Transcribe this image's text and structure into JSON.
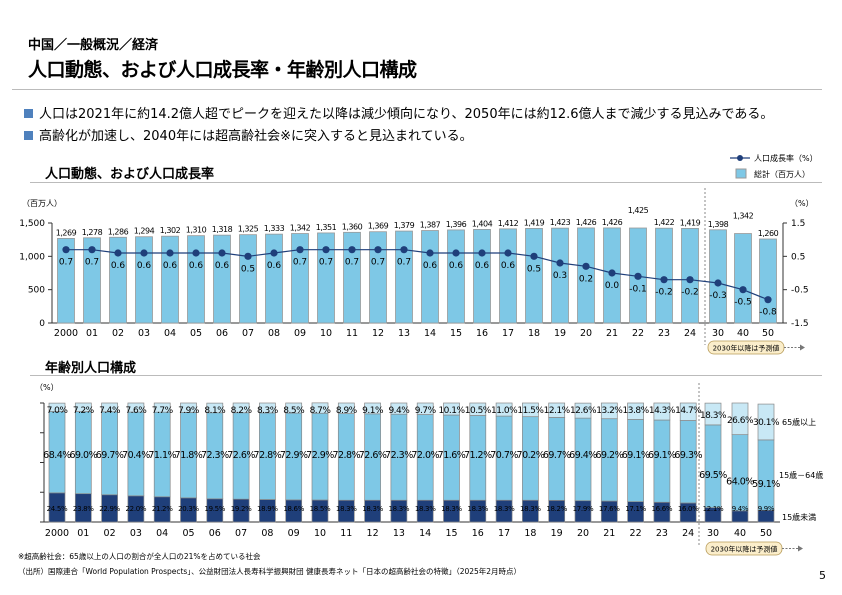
{
  "header": {
    "breadcrumb": "中国／一般概況／経済",
    "title": "人口動態、および人口成長率・年齢別人口構成"
  },
  "bullets": [
    "人口は2021年に約14.2億人超でピークを迎えた以降は減少傾向になり、2050年には約12.6億人まで減少する見込みである。",
    "高齢化が加速し、2040年には超高齢社会※に突入すると見込まれている。"
  ],
  "footnotes": [
    "※超高齢社会：65歳以上の人口の割合が全人口の21%を占めている社会",
    "（出所）国際連合「World Population Prospects」、公益財団法人長寿科学振興財団 健康長寿ネット「日本の超高齢社会の特徴」（2025年2月時点）"
  ],
  "page_number": "5",
  "colors": {
    "bar": "#7ec8e6",
    "line": "#1f3f7a",
    "elderly": "#c8e8f5",
    "working": "#7ec8e6",
    "young": "#1f3f7a",
    "bullet": "#4f81bd"
  },
  "chart_data": [
    {
      "type": "bar+line",
      "title": "人口動態、および人口成長率",
      "ylabel_left": "（百万人）",
      "ylabel_right": "（%）",
      "ylim_left": [
        0,
        1500
      ],
      "yticks_left": [
        "0",
        "500",
        "1,000",
        "1,500"
      ],
      "ylim_right": [
        -1.5,
        1.5
      ],
      "yticks_right": [
        "-1.5",
        "-0.5",
        "0.5",
        "1.5"
      ],
      "categories": [
        "2000",
        "01",
        "02",
        "03",
        "04",
        "05",
        "06",
        "07",
        "08",
        "09",
        "10",
        "11",
        "12",
        "13",
        "14",
        "15",
        "16",
        "17",
        "18",
        "19",
        "20",
        "21",
        "22",
        "23",
        "24",
        "30",
        "40",
        "50"
      ],
      "series": [
        {
          "name": "総計（百万人）",
          "type": "bar",
          "values": [
            1269,
            1278,
            1286,
            1294,
            1302,
            1310,
            1318,
            1325,
            1333,
            1342,
            1351,
            1360,
            1369,
            1379,
            1387,
            1396,
            1404,
            1412,
            1419,
            1423,
            1426,
            1426,
            1425,
            1422,
            1419,
            1398,
            1342,
            1260
          ],
          "labels": [
            "1,269",
            "1,278",
            "1,286",
            "1,294",
            "1,302",
            "1,310",
            "1,318",
            "1,325",
            "1,333",
            "1,342",
            "1,351",
            "1,360",
            "1,369",
            "1,379",
            "1,387",
            "1,396",
            "1,404",
            "1,412",
            "1,419",
            "1,423",
            "1,426",
            "1,426",
            "1,425",
            "1,422",
            "1,419",
            "1,398",
            "1,342",
            "1,260"
          ]
        },
        {
          "name": "人口成長率（%）",
          "type": "line",
          "values": [
            0.7,
            0.7,
            0.6,
            0.6,
            0.6,
            0.6,
            0.6,
            0.5,
            0.6,
            0.7,
            0.7,
            0.7,
            0.7,
            0.7,
            0.6,
            0.6,
            0.6,
            0.6,
            0.5,
            0.3,
            0.2,
            0.0,
            -0.1,
            -0.2,
            -0.2,
            -0.3,
            -0.5,
            -0.8
          ],
          "labels": [
            "0.7",
            "0.7",
            "0.6",
            "0.6",
            "0.6",
            "0.6",
            "0.6",
            "0.5",
            "0.6",
            "0.7",
            "0.7",
            "0.7",
            "0.7",
            "0.7",
            "0.6",
            "0.6",
            "0.6",
            "0.6",
            "0.5",
            "0.3",
            "0.2",
            "0.0",
            "-0.1",
            "-0.2",
            "-0.2",
            "-0.3",
            "-0.5",
            "-0.8"
          ]
        }
      ],
      "legend": [
        "人口成長率（%）",
        "総計（百万人）"
      ],
      "legend_position": "top-right",
      "forecast_note": "2030年以降は予測値"
    },
    {
      "type": "stacked-bar-100",
      "title": "年齢別人口構成",
      "ylabel": "（%）",
      "categories": [
        "2000",
        "01",
        "02",
        "03",
        "04",
        "05",
        "06",
        "07",
        "08",
        "09",
        "10",
        "11",
        "12",
        "13",
        "14",
        "15",
        "16",
        "17",
        "18",
        "19",
        "20",
        "21",
        "22",
        "23",
        "24",
        "30",
        "40",
        "50"
      ],
      "series": [
        {
          "name": "15歳未満",
          "values": [
            24.5,
            23.8,
            22.9,
            22.0,
            21.2,
            20.3,
            19.5,
            19.2,
            18.9,
            18.6,
            18.5,
            18.3,
            18.3,
            18.3,
            18.3,
            18.3,
            18.3,
            18.3,
            18.3,
            18.2,
            17.9,
            17.6,
            17.1,
            16.6,
            16.0,
            12.1,
            9.4,
            9.9
          ]
        },
        {
          "name": "15歳－64歳",
          "values": [
            68.4,
            69.0,
            69.7,
            70.4,
            71.1,
            71.8,
            72.3,
            72.6,
            72.8,
            72.9,
            72.9,
            72.8,
            72.6,
            72.3,
            72.0,
            71.6,
            71.2,
            70.7,
            70.2,
            69.7,
            69.4,
            69.2,
            69.1,
            69.1,
            69.3,
            69.5,
            64.0,
            59.1
          ]
        },
        {
          "name": "65歳以上",
          "values": [
            7.0,
            7.2,
            7.4,
            7.6,
            7.7,
            7.9,
            8.1,
            8.2,
            8.3,
            8.5,
            8.7,
            8.9,
            9.1,
            9.4,
            9.7,
            10.1,
            10.5,
            11.0,
            11.5,
            12.1,
            12.6,
            13.2,
            13.8,
            14.3,
            14.7,
            18.3,
            26.6,
            30.1
          ]
        }
      ],
      "legend_position": "right",
      "forecast_note": "2030年以降は予測値"
    }
  ]
}
